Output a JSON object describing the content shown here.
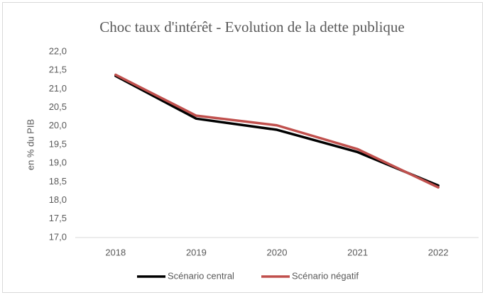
{
  "chart_data": {
    "type": "line",
    "title": "Choc taux d'intérêt - Evolution de la dette publique",
    "y_label": "en % du PIB",
    "categories": [
      "2018",
      "2019",
      "2020",
      "2021",
      "2022"
    ],
    "series": [
      {
        "name": "Scénario central",
        "color": "#000000",
        "values": [
          21.35,
          20.2,
          19.9,
          19.3,
          18.4
        ]
      },
      {
        "name": "Scénario négatif",
        "color": "#c0504d",
        "values": [
          21.38,
          20.28,
          20.02,
          19.38,
          18.35
        ]
      }
    ],
    "ylim": [
      17.0,
      22.0
    ],
    "yticks": [
      {
        "value": 17.0,
        "label": "17,0"
      },
      {
        "value": 17.5,
        "label": "17,5"
      },
      {
        "value": 18.0,
        "label": "18,0"
      },
      {
        "value": 18.5,
        "label": "18,5"
      },
      {
        "value": 19.0,
        "label": "19,0"
      },
      {
        "value": 19.5,
        "label": "19,5"
      },
      {
        "value": 20.0,
        "label": "20,0"
      },
      {
        "value": 20.5,
        "label": "20,5"
      },
      {
        "value": 21.0,
        "label": "21,0"
      },
      {
        "value": 21.5,
        "label": "21,5"
      },
      {
        "value": 22.0,
        "label": "22,0"
      }
    ],
    "grid": false,
    "legend": "bottom"
  }
}
